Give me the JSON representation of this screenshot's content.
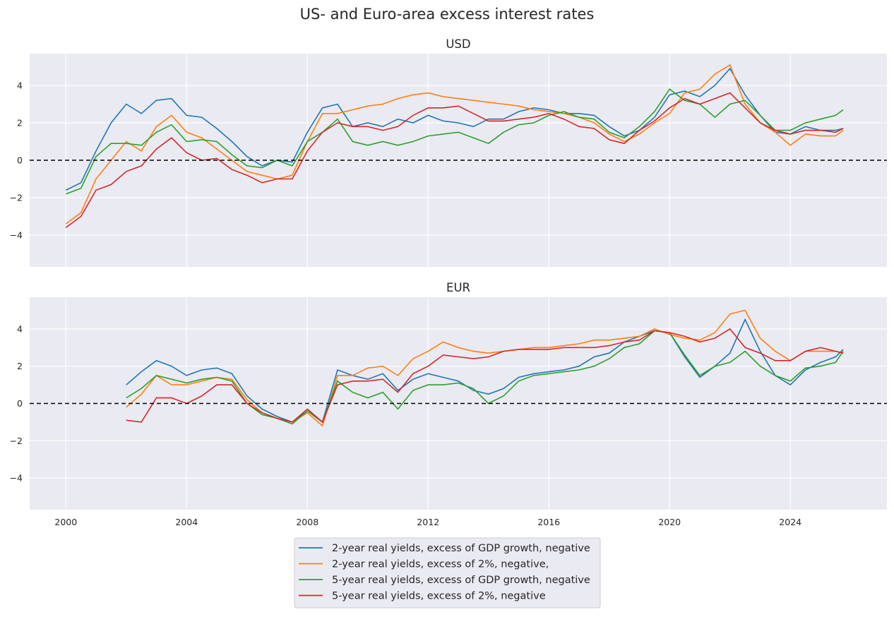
{
  "title": "US- and Euro-area excess interest rates",
  "colors": {
    "axes_bg": "#eaeaf2",
    "grid": "#ffffff",
    "zero_line": "#000000"
  },
  "legend": {
    "placement": "bottom-center",
    "entries": [
      {
        "label": "2-year real yields, excess of GDP growth, negative",
        "color": "#1f77b4"
      },
      {
        "label": "2-year real yields, excess of 2%, negative,",
        "color": "#ff7f0e"
      },
      {
        "label": "5-year real yields, excess of GDP growth, negative",
        "color": "#2ca02c"
      },
      {
        "label": "5-year real yields, excess of 2%, negative",
        "color": "#d62728"
      }
    ]
  },
  "chart_data": [
    {
      "type": "line",
      "title": "USD",
      "xlim": [
        1998.8,
        2027.2
      ],
      "ylim": [
        -5.7,
        5.7
      ],
      "xticks": [
        2000,
        2004,
        2008,
        2012,
        2016,
        2020,
        2024
      ],
      "xtick_labels_shown": false,
      "yticks": [
        -4,
        -2,
        0,
        2,
        4
      ],
      "grid": true,
      "hline": 0,
      "x": [
        2000,
        2000.5,
        2001,
        2001.5,
        2002,
        2002.5,
        2003,
        2003.5,
        2004,
        2004.5,
        2005,
        2005.5,
        2006,
        2006.5,
        2007,
        2007.5,
        2008,
        2008.5,
        2009,
        2009.5,
        2010,
        2010.5,
        2011,
        2011.5,
        2012,
        2012.5,
        2013,
        2013.5,
        2014,
        2014.5,
        2015,
        2015.5,
        2016,
        2016.5,
        2017,
        2017.5,
        2018,
        2018.5,
        2019,
        2019.5,
        2020,
        2020.5,
        2021,
        2021.5,
        2022,
        2022.5,
        2023,
        2023.5,
        2024,
        2024.5,
        2025,
        2025.5,
        2025.75
      ],
      "series": [
        {
          "name": "2-year real yields, excess of GDP growth, negative",
          "values": [
            -1.6,
            -1.2,
            0.5,
            2.0,
            3.0,
            2.5,
            3.2,
            3.3,
            2.4,
            2.3,
            1.7,
            1.0,
            0.2,
            -0.3,
            0.0,
            -0.1,
            1.5,
            2.8,
            3.0,
            1.8,
            2.0,
            1.8,
            2.2,
            2.0,
            2.4,
            2.1,
            2.0,
            1.8,
            2.2,
            2.2,
            2.6,
            2.8,
            2.7,
            2.5,
            2.5,
            2.4,
            1.8,
            1.3,
            1.6,
            2.3,
            3.5,
            3.7,
            3.4,
            4.0,
            4.9,
            3.5,
            2.4,
            1.5,
            1.4,
            1.8,
            1.6,
            1.6,
            1.7
          ]
        },
        {
          "name": "2-year real yields, excess of 2%, negative,",
          "values": [
            -3.4,
            -2.8,
            -1.0,
            0.0,
            1.0,
            0.5,
            1.8,
            2.4,
            1.5,
            1.2,
            0.6,
            0.0,
            -0.6,
            -0.8,
            -1.0,
            -0.8,
            1.0,
            2.5,
            2.5,
            2.7,
            2.9,
            3.0,
            3.3,
            3.5,
            3.6,
            3.4,
            3.3,
            3.2,
            3.1,
            3.0,
            2.9,
            2.7,
            2.6,
            2.5,
            2.3,
            2.0,
            1.4,
            1.0,
            1.4,
            2.0,
            2.5,
            3.6,
            3.8,
            4.6,
            5.1,
            3.0,
            2.0,
            1.5,
            0.8,
            1.4,
            1.3,
            1.3,
            1.6
          ]
        },
        {
          "name": "5-year real yields, excess of GDP growth, negative",
          "values": [
            -1.8,
            -1.5,
            0.2,
            0.9,
            0.9,
            0.8,
            1.5,
            1.9,
            1.0,
            1.1,
            1.0,
            0.3,
            -0.3,
            -0.4,
            0.0,
            -0.3,
            1.0,
            1.5,
            2.2,
            1.0,
            0.8,
            1.0,
            0.8,
            1.0,
            1.3,
            1.4,
            1.5,
            1.2,
            0.9,
            1.5,
            1.9,
            2.0,
            2.4,
            2.6,
            2.3,
            2.2,
            1.5,
            1.2,
            1.8,
            2.6,
            3.8,
            3.2,
            3.0,
            2.3,
            3.0,
            3.2,
            2.4,
            1.6,
            1.6,
            2.0,
            2.2,
            2.4,
            2.7
          ]
        },
        {
          "name": "5-year real yields, excess of 2%, negative",
          "values": [
            -3.6,
            -3.0,
            -1.6,
            -1.3,
            -0.6,
            -0.3,
            0.6,
            1.2,
            0.4,
            0.0,
            0.1,
            -0.5,
            -0.8,
            -1.2,
            -1.0,
            -1.0,
            0.5,
            1.5,
            2.0,
            1.8,
            1.8,
            1.6,
            1.8,
            2.4,
            2.8,
            2.8,
            2.9,
            2.5,
            2.1,
            2.1,
            2.2,
            2.3,
            2.5,
            2.2,
            1.8,
            1.7,
            1.1,
            0.9,
            1.6,
            2.1,
            2.8,
            3.3,
            3.0,
            3.3,
            3.6,
            2.8,
            2.0,
            1.6,
            1.4,
            1.6,
            1.6,
            1.5,
            1.7
          ]
        }
      ]
    },
    {
      "type": "line",
      "title": "EUR",
      "xlim": [
        1998.8,
        2027.2
      ],
      "ylim": [
        -5.7,
        5.7
      ],
      "xticks": [
        2000,
        2004,
        2008,
        2012,
        2016,
        2020,
        2024
      ],
      "xtick_labels_shown": true,
      "yticks": [
        -4,
        -2,
        0,
        2,
        4
      ],
      "grid": true,
      "hline": 0,
      "x": [
        2002,
        2002.5,
        2003,
        2003.5,
        2004,
        2004.5,
        2005,
        2005.5,
        2006,
        2006.5,
        2007,
        2007.5,
        2008,
        2008.5,
        2009,
        2009.5,
        2010,
        2010.5,
        2011,
        2011.5,
        2012,
        2012.5,
        2013,
        2013.5,
        2014,
        2014.5,
        2015,
        2015.5,
        2016,
        2016.5,
        2017,
        2017.5,
        2018,
        2018.5,
        2019,
        2019.5,
        2020,
        2020.5,
        2021,
        2021.5,
        2022,
        2022.5,
        2023,
        2023.5,
        2024,
        2024.5,
        2025,
        2025.5,
        2025.75
      ],
      "series": [
        {
          "name": "2-year real yields, excess of GDP growth, negative",
          "values": [
            1.0,
            1.7,
            2.3,
            2.0,
            1.5,
            1.8,
            1.9,
            1.6,
            0.4,
            -0.3,
            -0.7,
            -1.0,
            -0.4,
            -1.0,
            1.8,
            1.5,
            1.3,
            1.6,
            0.7,
            1.3,
            1.6,
            1.4,
            1.2,
            0.7,
            0.5,
            0.8,
            1.4,
            1.6,
            1.7,
            1.8,
            2.0,
            2.5,
            2.7,
            3.3,
            3.6,
            3.9,
            3.8,
            2.5,
            1.4,
            2.0,
            2.7,
            4.5,
            2.8,
            1.5,
            1.0,
            1.8,
            2.2,
            2.5,
            2.9
          ]
        },
        {
          "name": "2-year real yields, excess of 2%, negative,",
          "values": [
            -0.2,
            0.5,
            1.5,
            1.0,
            1.0,
            1.2,
            1.4,
            1.3,
            0.2,
            -0.5,
            -0.8,
            -1.0,
            -0.5,
            -1.2,
            1.5,
            1.5,
            1.9,
            2.0,
            1.5,
            2.4,
            2.8,
            3.3,
            3.0,
            2.8,
            2.7,
            2.8,
            2.9,
            3.0,
            3.0,
            3.1,
            3.2,
            3.4,
            3.4,
            3.5,
            3.6,
            4.0,
            3.7,
            3.5,
            3.4,
            3.8,
            4.8,
            5.0,
            3.5,
            2.8,
            2.3,
            2.8,
            2.8,
            2.8,
            2.7
          ]
        },
        {
          "name": "5-year real yields, excess of GDP growth, negative",
          "values": [
            0.3,
            0.8,
            1.5,
            1.3,
            1.1,
            1.3,
            1.4,
            1.2,
            0.0,
            -0.6,
            -0.8,
            -1.1,
            -0.4,
            -1.0,
            1.2,
            0.6,
            0.3,
            0.6,
            -0.3,
            0.7,
            1.0,
            1.0,
            1.1,
            0.8,
            0.0,
            0.4,
            1.2,
            1.5,
            1.6,
            1.7,
            1.8,
            2.0,
            2.4,
            3.0,
            3.2,
            3.9,
            3.8,
            2.6,
            1.5,
            2.0,
            2.2,
            2.8,
            2.0,
            1.5,
            1.2,
            1.9,
            2.0,
            2.2,
            2.8
          ]
        },
        {
          "name": "5-year real yields, excess of 2%, negative",
          "values": [
            -0.9,
            -1.0,
            0.3,
            0.3,
            0.0,
            0.4,
            1.0,
            1.0,
            0.0,
            -0.5,
            -0.8,
            -1.0,
            -0.3,
            -1.0,
            1.0,
            1.2,
            1.2,
            1.3,
            0.6,
            1.6,
            2.0,
            2.6,
            2.5,
            2.4,
            2.5,
            2.8,
            2.9,
            2.9,
            2.9,
            3.0,
            3.0,
            3.0,
            3.1,
            3.3,
            3.4,
            3.9,
            3.8,
            3.6,
            3.3,
            3.5,
            4.0,
            3.0,
            2.7,
            2.3,
            2.3,
            2.8,
            3.0,
            2.8,
            2.7
          ]
        }
      ]
    }
  ]
}
